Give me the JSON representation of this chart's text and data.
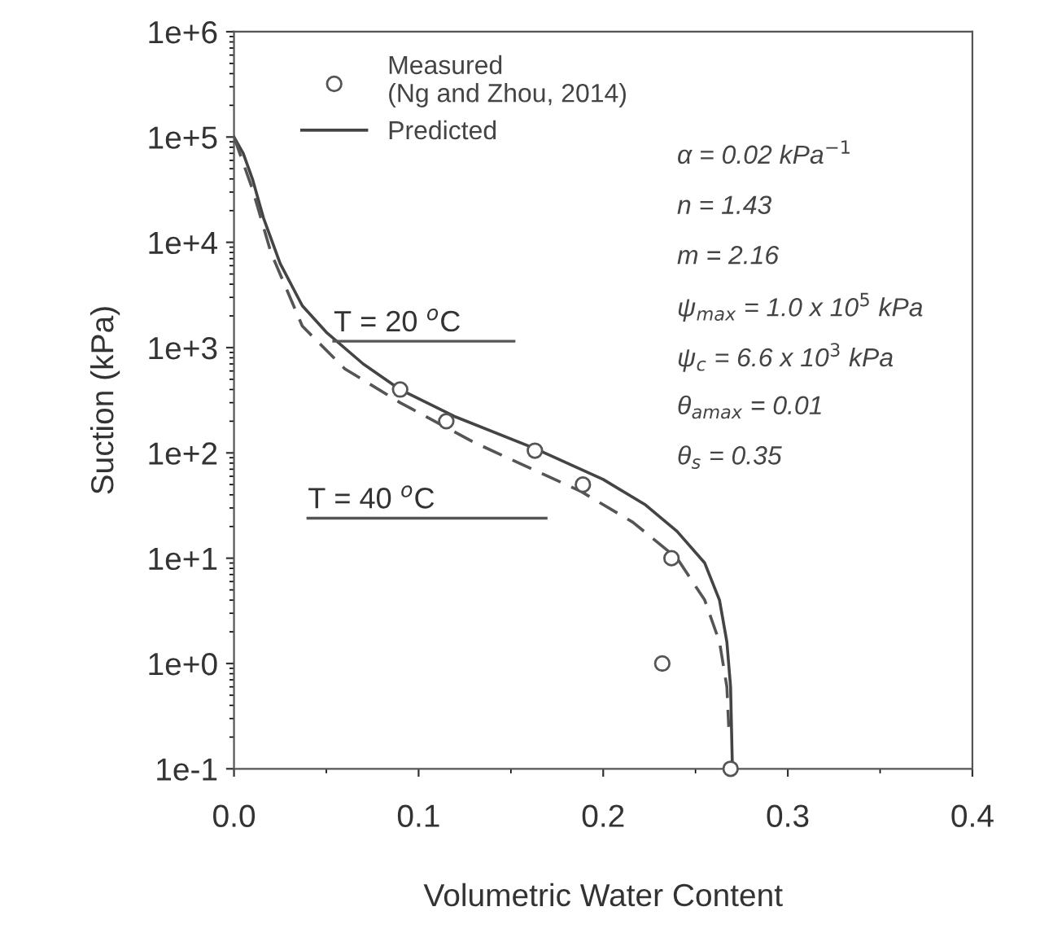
{
  "chart_data": {
    "type": "line",
    "xlabel": "Volumetric Water Content",
    "ylabel": "Suction (kPa)",
    "xlim": [
      0,
      0.4
    ],
    "xticks": [
      {
        "value": 0,
        "label": "0.0"
      },
      0.1,
      0.2,
      0.3,
      0.4
    ],
    "ylim": [
      0.1,
      1000000
    ],
    "yticks": [
      {
        "value": 0.1,
        "label": "1e-1"
      },
      {
        "value": 1,
        "label": "1e+0"
      },
      {
        "value": 10,
        "label": "1e+1"
      },
      {
        "value": 100,
        "label": "1e+2"
      },
      {
        "value": 1000,
        "label": "1e+3"
      },
      {
        "value": 10000,
        "label": "1e+4"
      },
      {
        "value": 100000,
        "label": "1e+5"
      },
      {
        "value": 1000000,
        "label": "1e+6"
      }
    ],
    "log": "y",
    "grid": false,
    "legend": "top left",
    "series": [
      {
        "name": "Measured\n(Ng and Zhou, 2014)",
        "type": "scatter",
        "marker": "circle",
        "color": "#555555",
        "x": [
          0.09,
          0.115,
          0.163,
          0.189,
          0.237,
          0.232,
          0.269
        ],
        "values": [
          400,
          200,
          105,
          50,
          10,
          1,
          0.1
        ]
      },
      {
        "name": "Predicted",
        "line_style": "solid",
        "color": "#444444",
        "x": [
          0,
          0.005,
          0.01,
          0.016,
          0.025,
          0.037,
          0.05,
          0.07,
          0.09,
          0.12,
          0.163,
          0.2,
          0.223,
          0.24,
          0.255,
          0.263,
          0.267,
          0.269,
          0.27
        ],
        "values": [
          100000,
          70000,
          40000,
          17000,
          6300,
          2500,
          1400,
          700,
          400,
          220,
          110,
          56,
          32,
          18,
          9,
          4,
          1.6,
          0.6,
          0.1
        ]
      },
      {
        "line_style": "dashed",
        "color": "#555555",
        "x": [
          0,
          0.01,
          0.02,
          0.037,
          0.06,
          0.09,
          0.13,
          0.188,
          0.216,
          0.24,
          0.255,
          0.263,
          0.267,
          0.268
        ],
        "values": [
          100000,
          32000,
          8000,
          1600,
          630,
          300,
          126,
          43,
          22,
          10,
          4,
          1.6,
          0.6,
          0.25
        ]
      }
    ],
    "annotations": [
      "T = 20 $^{o}$C",
      "T = 40 $^{o}$C",
      "α = 0.02 kPa$^{−1}$",
      "n = 1.43",
      "m = 2.16",
      "ψ$_{max}$ = 1.0 x 10$^{5}$ kPa",
      "ψ$_{c}$ = 6.6 x 10$^{3}$ kPa",
      "θ$_{amax}$ = 0.01",
      "θ$_{s}$ = 0.35"
    ]
  }
}
